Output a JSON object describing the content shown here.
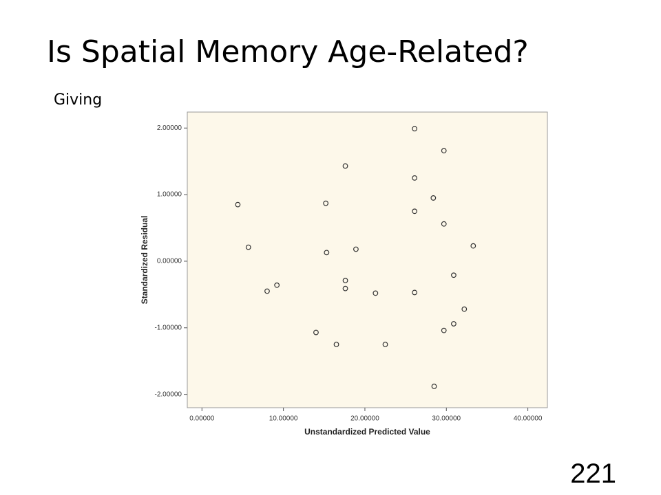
{
  "header": {
    "title": "Is Spatial Memory Age-Related?",
    "subtitle": "Giving"
  },
  "footer": {
    "page_number": "221"
  },
  "chart_data": {
    "type": "scatter",
    "x_label": "Unstandardized Predicted Value",
    "y_label": "Standardized Residual",
    "x": [
      4.4,
      5.7,
      8.0,
      9.2,
      14.0,
      15.2,
      15.3,
      16.5,
      17.6,
      17.6,
      17.6,
      18.9,
      21.3,
      22.5,
      26.1,
      26.1,
      26.1,
      26.1,
      28.4,
      28.5,
      29.7,
      29.7,
      29.7,
      30.9,
      30.9,
      32.2,
      33.3
    ],
    "values": [
      0.85,
      0.21,
      -0.45,
      -0.36,
      -1.07,
      0.87,
      0.13,
      -1.25,
      1.43,
      -0.29,
      -0.41,
      0.18,
      -0.48,
      -1.25,
      1.99,
      1.25,
      0.75,
      -0.47,
      0.95,
      -1.88,
      1.66,
      0.56,
      -1.04,
      -0.21,
      -0.94,
      -0.72,
      0.23
    ],
    "color": "#333333",
    "background": "#fdf8ea",
    "xlim": [
      -1.8,
      42.4
    ],
    "ylim": [
      -2.2,
      2.24
    ],
    "xticks": [
      {
        "value": 0,
        "label": "0.00000"
      },
      {
        "value": 10,
        "label": "10.00000"
      },
      {
        "value": 20,
        "label": "20.00000"
      },
      {
        "value": 30,
        "label": "30.00000"
      },
      {
        "value": 40,
        "label": "40.00000"
      }
    ],
    "yticks": [
      {
        "value": -2,
        "label": "-2.00000"
      },
      {
        "value": -1,
        "label": "-1.00000"
      },
      {
        "value": 0,
        "label": "0.00000"
      },
      {
        "value": 1,
        "label": "1.00000"
      },
      {
        "value": 2,
        "label": "2.00000"
      }
    ]
  }
}
